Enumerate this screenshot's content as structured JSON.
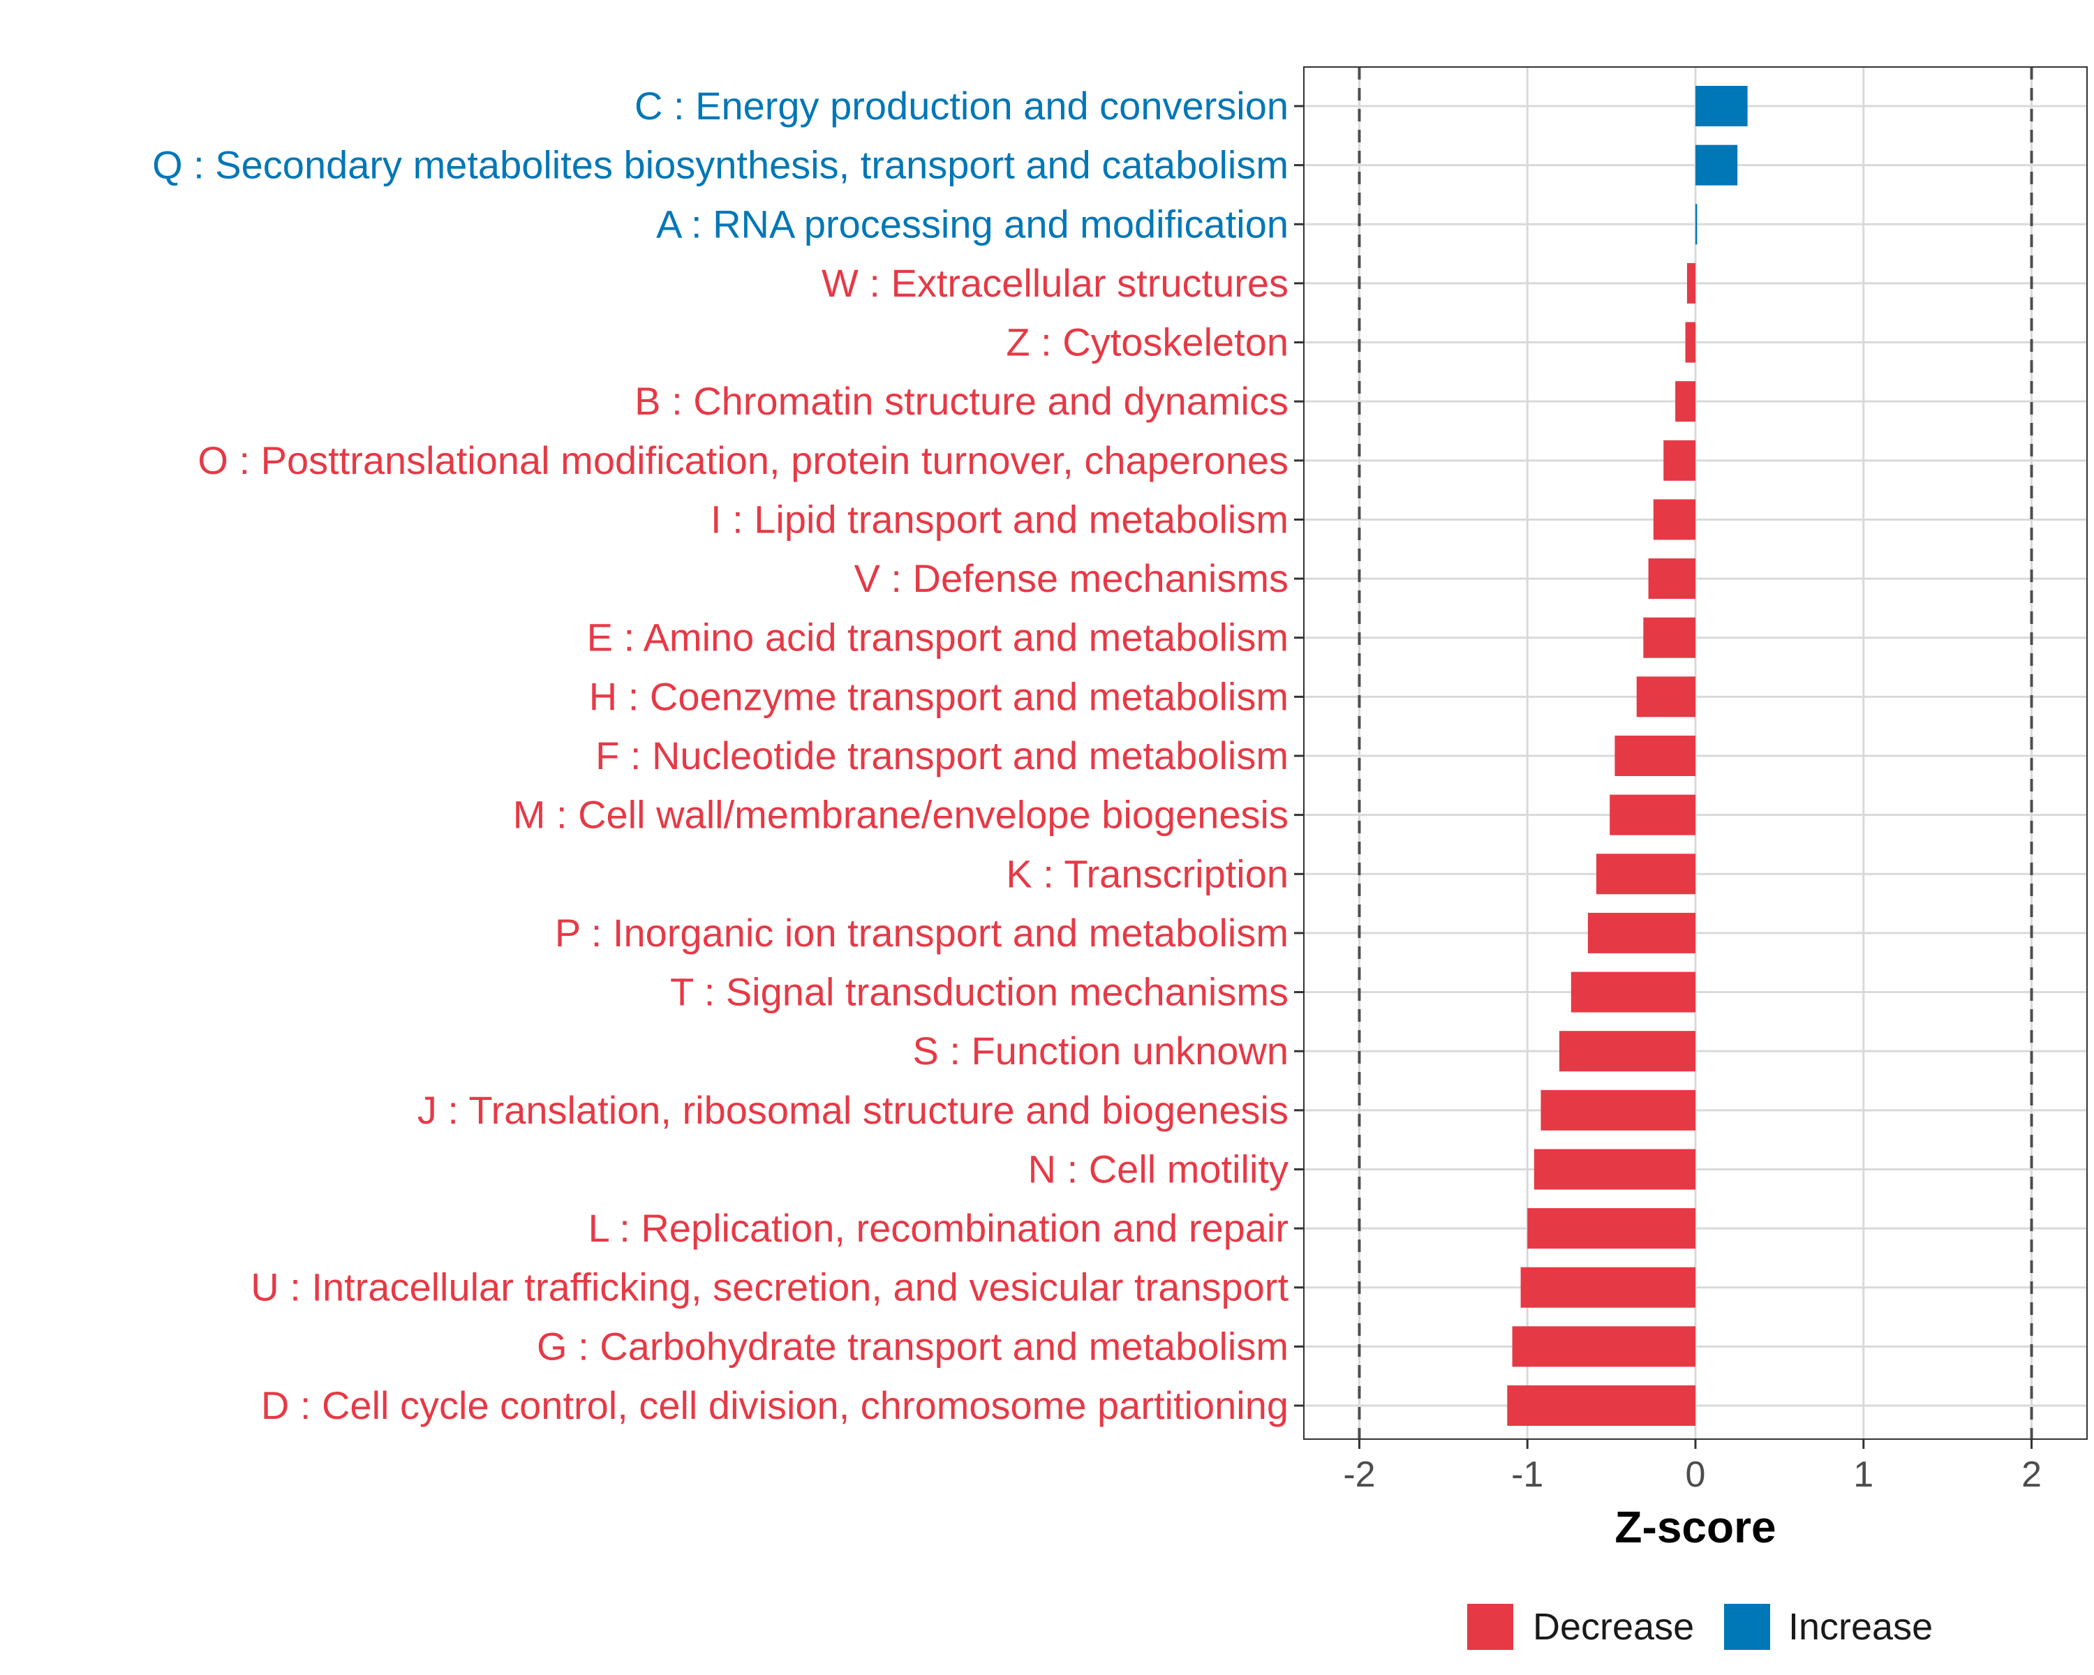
{
  "chart_data": {
    "type": "bar",
    "orientation": "horizontal",
    "xlabel": "Z-score",
    "xlim": [
      -2.33,
      2.33
    ],
    "xticks": [
      -2,
      -1,
      0,
      1,
      2
    ],
    "tick_labels": [
      "-2",
      "-1",
      "0",
      "1",
      "2"
    ],
    "reference_lines": [
      -2,
      2
    ],
    "grid": true,
    "legend": {
      "placement": "bottom",
      "entries": [
        {
          "label": "Decrease",
          "color": "#E63946"
        },
        {
          "label": "Increase",
          "color": "#0077B6"
        }
      ]
    },
    "colors": {
      "decrease": "#E63946",
      "increase": "#0077B6"
    },
    "categories": [
      "C : Energy production and conversion",
      "Q : Secondary metabolites biosynthesis, transport and catabolism",
      "A : RNA processing and modification",
      "W : Extracellular structures",
      "Z : Cytoskeleton",
      "B : Chromatin structure and dynamics",
      "O : Posttranslational modification, protein turnover, chaperones",
      "I : Lipid transport and metabolism",
      "V : Defense mechanisms",
      "E : Amino acid transport and metabolism",
      "H : Coenzyme transport and metabolism",
      "F : Nucleotide transport and metabolism",
      "M : Cell wall/membrane/envelope biogenesis",
      "K : Transcription",
      "P : Inorganic ion transport and metabolism",
      "T : Signal transduction mechanisms",
      "S : Function unknown",
      "J : Translation, ribosomal structure and biogenesis",
      "N : Cell motility",
      "L : Replication, recombination and repair",
      "U : Intracellular trafficking, secretion, and vesicular transport",
      "G : Carbohydrate transport and metabolism",
      "D : Cell cycle control, cell division, chromosome partitioning"
    ],
    "values": [
      0.31,
      0.25,
      0.01,
      -0.05,
      -0.06,
      -0.12,
      -0.19,
      -0.25,
      -0.28,
      -0.31,
      -0.35,
      -0.48,
      -0.51,
      -0.59,
      -0.64,
      -0.74,
      -0.81,
      -0.92,
      -0.96,
      -1.0,
      -1.04,
      -1.09,
      -1.12
    ]
  }
}
